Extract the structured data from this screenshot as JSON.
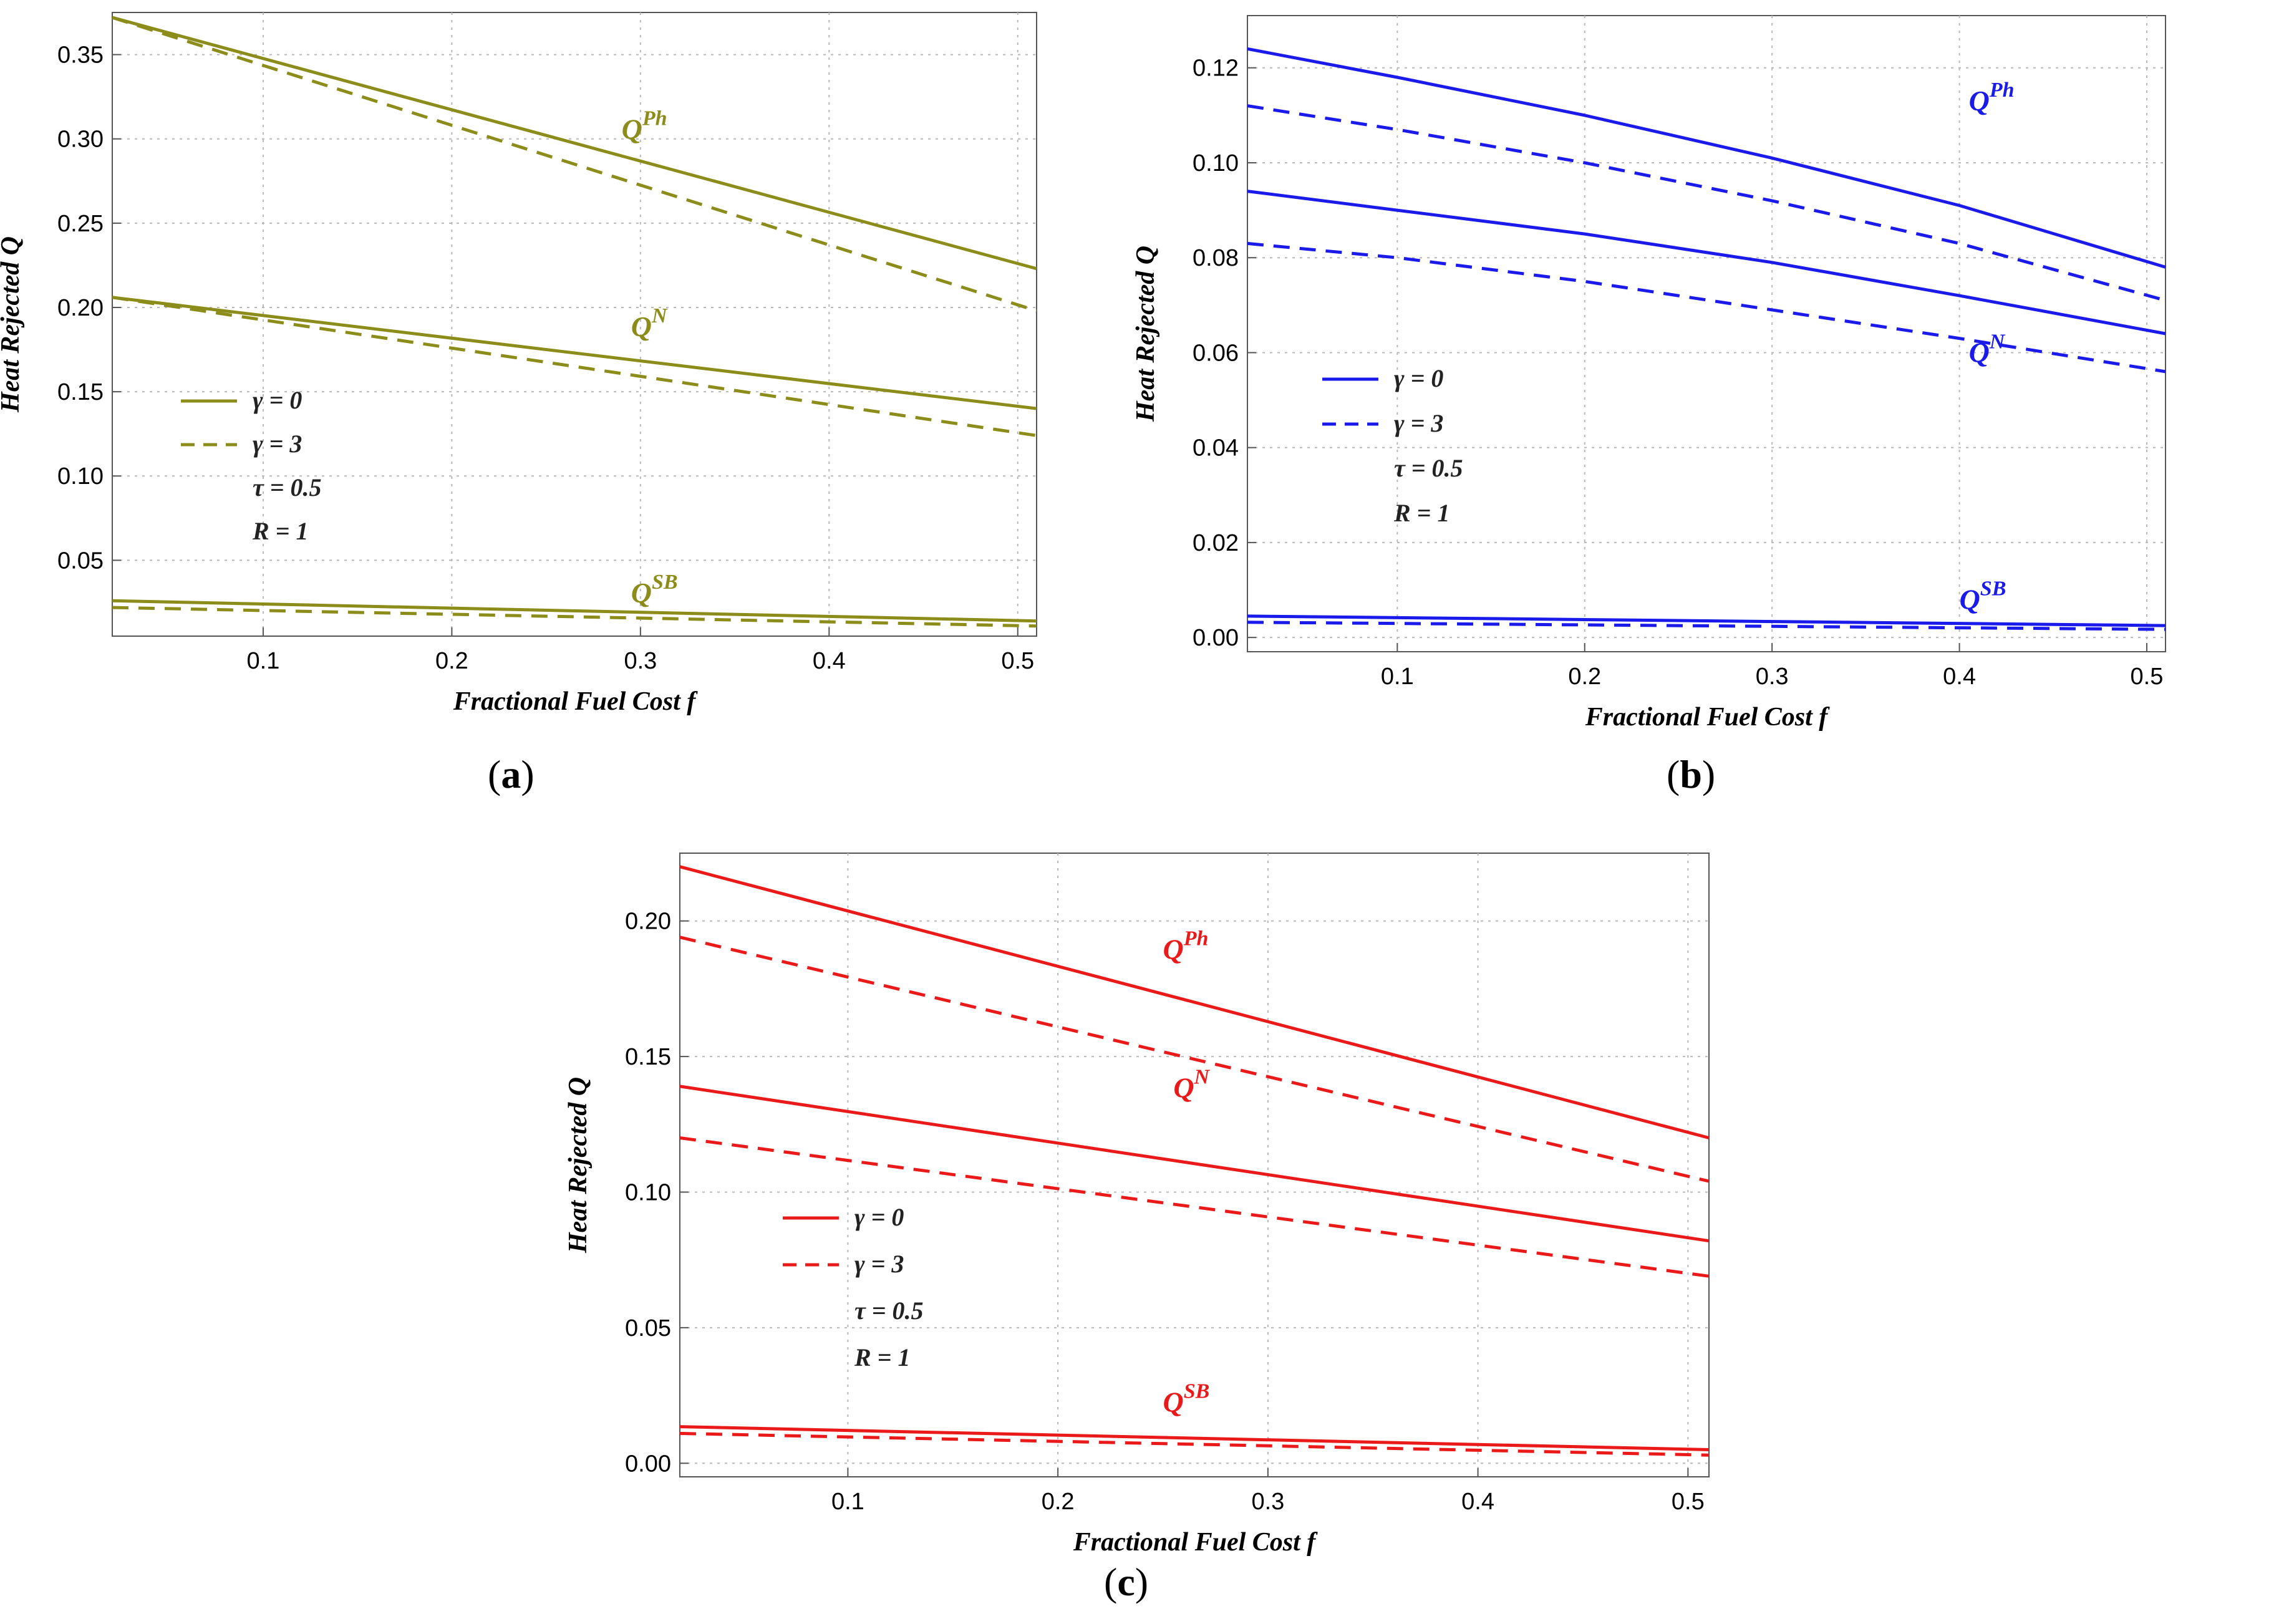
{
  "chart_data": [
    {
      "type": "line",
      "panel_label": "a",
      "xlabel": "Fractional Fuel Cost f",
      "ylabel": "Heat Rejected Q",
      "xlim": [
        0.02,
        0.51
      ],
      "ylim": [
        0.005,
        0.375
      ],
      "xticks": [
        0.1,
        0.2,
        0.3,
        0.4,
        0.5
      ],
      "yticks": [
        0.05,
        0.1,
        0.15,
        0.2,
        0.25,
        0.3,
        0.35
      ],
      "ytick_labels": [
        "0.05",
        "0.10",
        "0.15",
        "0.20",
        "0.25",
        "0.30",
        "0.35"
      ],
      "color": "#8c8c1a",
      "grid": true,
      "legend": {
        "placement": "left-middle",
        "entries": [
          {
            "label": "γ = 0",
            "style": "solid"
          },
          {
            "label": "γ = 3",
            "style": "dashed"
          },
          {
            "label": "τ = 0.5",
            "style": "none"
          },
          {
            "label": "R = 1",
            "style": "none"
          }
        ]
      },
      "series": [
        {
          "group": "Q^Ph",
          "style": "solid",
          "x": [
            0.02,
            0.51
          ],
          "y": [
            0.372,
            0.223
          ]
        },
        {
          "group": "Q^Ph",
          "style": "dashed",
          "x": [
            0.02,
            0.51
          ],
          "y": [
            0.372,
            0.198
          ]
        },
        {
          "group": "Q^N",
          "style": "solid",
          "x": [
            0.02,
            0.51
          ],
          "y": [
            0.206,
            0.14
          ]
        },
        {
          "group": "Q^N",
          "style": "dashed",
          "x": [
            0.02,
            0.51
          ],
          "y": [
            0.206,
            0.124
          ]
        },
        {
          "group": "Q^SB",
          "style": "solid",
          "x": [
            0.02,
            0.51
          ],
          "y": [
            0.026,
            0.014
          ]
        },
        {
          "group": "Q^SB",
          "style": "dashed",
          "x": [
            0.02,
            0.51
          ],
          "y": [
            0.022,
            0.011
          ]
        }
      ],
      "annotations": [
        {
          "base": "Q",
          "sup": "Ph",
          "x": 0.29,
          "y": 0.3
        },
        {
          "base": "Q",
          "sup": "N",
          "x": 0.295,
          "y": 0.183
        },
        {
          "base": "Q",
          "sup": "SB",
          "x": 0.295,
          "y": 0.025
        }
      ]
    },
    {
      "type": "line",
      "panel_label": "b",
      "xlabel": "Fractional Fuel Cost f",
      "ylabel": "Heat Rejected Q",
      "xlim": [
        0.02,
        0.51
      ],
      "ylim": [
        -0.003,
        0.131
      ],
      "xticks": [
        0.1,
        0.2,
        0.3,
        0.4,
        0.5
      ],
      "yticks": [
        0.0,
        0.02,
        0.04,
        0.06,
        0.08,
        0.1,
        0.12
      ],
      "ytick_labels": [
        "0.00",
        "0.02",
        "0.04",
        "0.06",
        "0.08",
        "0.10",
        "0.12"
      ],
      "color": "#1a1aeb",
      "grid": true,
      "legend": {
        "placement": "left-middle",
        "entries": [
          {
            "label": "γ = 0",
            "style": "solid"
          },
          {
            "label": "γ = 3",
            "style": "dashed"
          },
          {
            "label": "τ = 0.5",
            "style": "none"
          },
          {
            "label": "R = 1",
            "style": "none"
          }
        ]
      },
      "series": [
        {
          "group": "Q^Ph",
          "style": "solid",
          "x": [
            0.02,
            0.1,
            0.2,
            0.3,
            0.4,
            0.51
          ],
          "y": [
            0.124,
            0.118,
            0.11,
            0.101,
            0.091,
            0.078
          ]
        },
        {
          "group": "Q^Ph",
          "style": "dashed",
          "x": [
            0.02,
            0.1,
            0.2,
            0.3,
            0.4,
            0.51
          ],
          "y": [
            0.112,
            0.107,
            0.1,
            0.092,
            0.083,
            0.071
          ]
        },
        {
          "group": "Q^N",
          "style": "solid",
          "x": [
            0.02,
            0.1,
            0.2,
            0.3,
            0.4,
            0.51
          ],
          "y": [
            0.094,
            0.09,
            0.085,
            0.079,
            0.072,
            0.064
          ]
        },
        {
          "group": "Q^N",
          "style": "dashed",
          "x": [
            0.02,
            0.1,
            0.2,
            0.3,
            0.4,
            0.51
          ],
          "y": [
            0.083,
            0.08,
            0.075,
            0.069,
            0.063,
            0.056
          ]
        },
        {
          "group": "Q^SB",
          "style": "solid",
          "x": [
            0.02,
            0.51
          ],
          "y": [
            0.0045,
            0.0025
          ]
        },
        {
          "group": "Q^SB",
          "style": "dashed",
          "x": [
            0.02,
            0.51
          ],
          "y": [
            0.0032,
            0.0017
          ]
        }
      ],
      "annotations": [
        {
          "base": "Q",
          "sup": "Ph",
          "x": 0.405,
          "y": 0.111
        },
        {
          "base": "Q",
          "sup": "N",
          "x": 0.405,
          "y": 0.058
        },
        {
          "base": "Q",
          "sup": "SB",
          "x": 0.4,
          "y": 0.006
        }
      ]
    },
    {
      "type": "line",
      "panel_label": "c",
      "xlabel": "Fractional Fuel Cost f",
      "ylabel": "Heat Rejected Q",
      "xlim": [
        0.02,
        0.51
      ],
      "ylim": [
        -0.005,
        0.225
      ],
      "xticks": [
        0.1,
        0.2,
        0.3,
        0.4,
        0.5
      ],
      "yticks": [
        0.0,
        0.05,
        0.1,
        0.15,
        0.2
      ],
      "ytick_labels": [
        "0.00",
        "0.05",
        "0.10",
        "0.15",
        "0.20"
      ],
      "color": "#eb1a1a",
      "grid": true,
      "legend": {
        "placement": "left-middle",
        "entries": [
          {
            "label": "γ = 0",
            "style": "solid"
          },
          {
            "label": "γ = 3",
            "style": "dashed"
          },
          {
            "label": "τ = 0.5",
            "style": "none"
          },
          {
            "label": "R = 1",
            "style": "none"
          }
        ]
      },
      "series": [
        {
          "group": "Q^Ph",
          "style": "solid",
          "x": [
            0.02,
            0.51
          ],
          "y": [
            0.22,
            0.12
          ]
        },
        {
          "group": "Q^Ph",
          "style": "dashed",
          "x": [
            0.02,
            0.51
          ],
          "y": [
            0.194,
            0.104
          ]
        },
        {
          "group": "Q^N",
          "style": "solid",
          "x": [
            0.02,
            0.51
          ],
          "y": [
            0.139,
            0.082
          ]
        },
        {
          "group": "Q^N",
          "style": "dashed",
          "x": [
            0.02,
            0.51
          ],
          "y": [
            0.12,
            0.069
          ]
        },
        {
          "group": "Q^SB",
          "style": "solid",
          "x": [
            0.02,
            0.51
          ],
          "y": [
            0.0135,
            0.005
          ]
        },
        {
          "group": "Q^SB",
          "style": "dashed",
          "x": [
            0.02,
            0.51
          ],
          "y": [
            0.011,
            0.003
          ]
        }
      ],
      "annotations": [
        {
          "base": "Q",
          "sup": "Ph",
          "x": 0.25,
          "y": 0.186
        },
        {
          "base": "Q",
          "sup": "N",
          "x": 0.255,
          "y": 0.135
        },
        {
          "base": "Q",
          "sup": "SB",
          "x": 0.25,
          "y": 0.019
        }
      ]
    }
  ]
}
